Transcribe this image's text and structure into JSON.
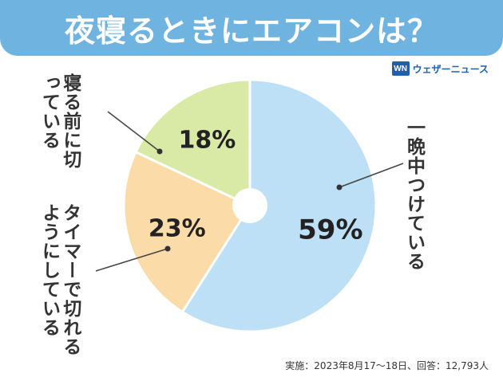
{
  "header": {
    "title": "夜寝るときにエアコンは？"
  },
  "brand": {
    "logo_text": "WN",
    "name": "ウェザーニュース"
  },
  "chart_data": {
    "type": "pie",
    "title": "夜寝るときにエアコンは？",
    "slices": [
      {
        "label": "一晩中つけている",
        "value": 59,
        "value_label": "59%",
        "color": "#bde0f6"
      },
      {
        "label": "タイマーで切れるようにしている",
        "value": 23,
        "value_label": "23%",
        "color": "#fbdca8"
      },
      {
        "label": "寝る前に切っている",
        "value": 18,
        "value_label": "18%",
        "color": "#d9e9a6"
      }
    ]
  },
  "labels": {
    "overnight": "一晩中つけている",
    "timer": "タイマーで切れるようにしている",
    "before_sleep": "寝る前に切っている"
  },
  "footnote": "実施：2023年8月17〜18日、回答：12,793人"
}
